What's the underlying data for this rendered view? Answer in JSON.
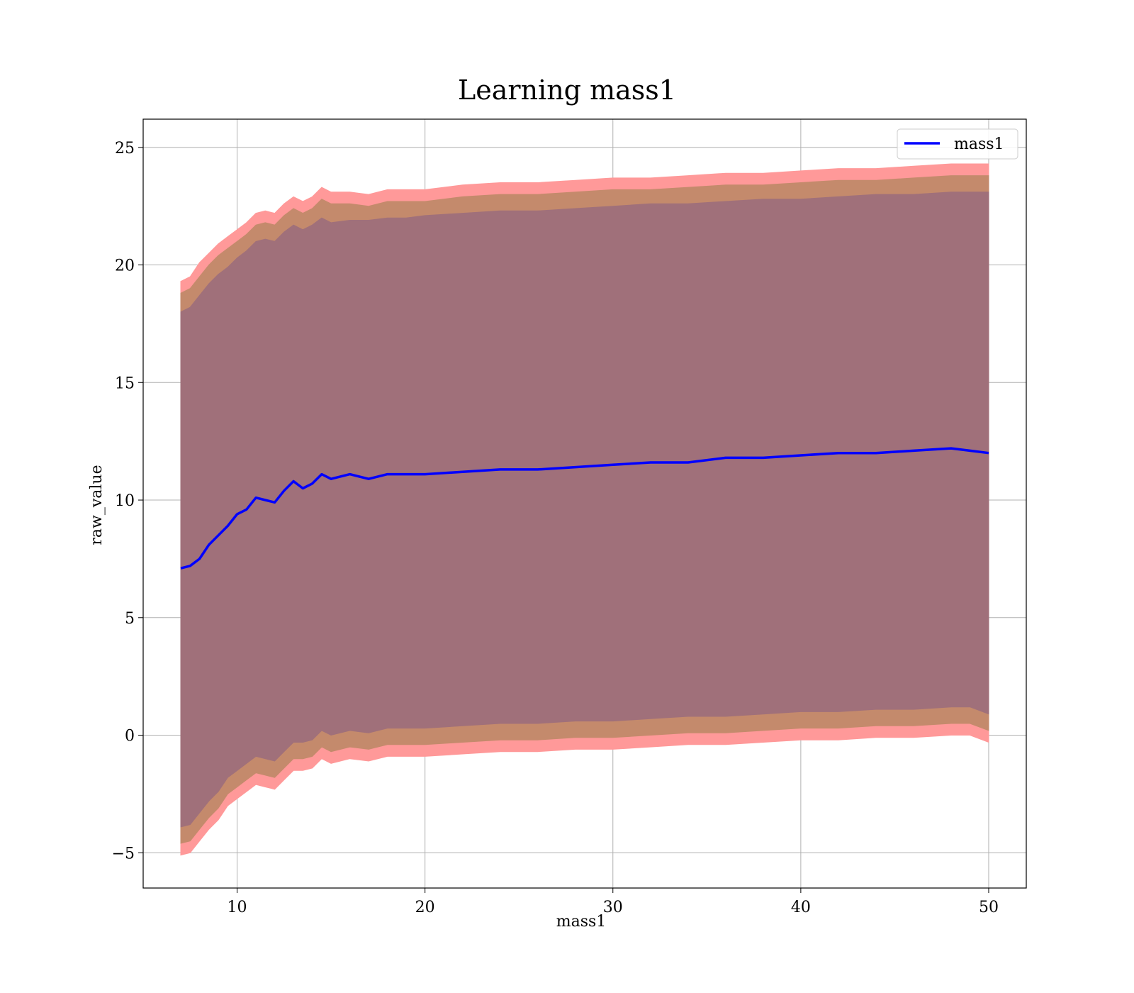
{
  "chart_data": {
    "type": "line",
    "title": "Learning mass1",
    "xlabel": "mass1",
    "ylabel": "raw_value",
    "xlim": [
      5,
      52
    ],
    "ylim": [
      -6.5,
      26.2
    ],
    "xticks": [
      10,
      20,
      30,
      40,
      50
    ],
    "yticks": [
      -5,
      0,
      5,
      10,
      15,
      20,
      25
    ],
    "ytick_labels": [
      "−5",
      "0",
      "5",
      "10",
      "15",
      "20",
      "25"
    ],
    "grid": true,
    "legend_position": "top-right",
    "colors": {
      "line": "#0000ff",
      "band_outer": "#ff9999",
      "band_middle": "#c48a6c",
      "band_inner": "#a0707a"
    },
    "series": [
      {
        "name": "mass1",
        "x": [
          7,
          7.5,
          8,
          8.5,
          9,
          9.5,
          10,
          10.5,
          11,
          11.5,
          12,
          12.5,
          13,
          13.5,
          14,
          14.5,
          15,
          16,
          17,
          18,
          19,
          20,
          22,
          24,
          26,
          28,
          30,
          32,
          34,
          36,
          38,
          40,
          42,
          44,
          46,
          48,
          49,
          50
        ],
        "y": [
          7.1,
          7.2,
          7.5,
          8.1,
          8.5,
          8.9,
          9.4,
          9.6,
          10.1,
          10.0,
          9.9,
          10.4,
          10.8,
          10.5,
          10.7,
          11.1,
          10.9,
          11.1,
          10.9,
          11.1,
          11.1,
          11.1,
          11.2,
          11.3,
          11.3,
          11.4,
          11.5,
          11.6,
          11.6,
          11.8,
          11.8,
          11.9,
          12.0,
          12.0,
          12.1,
          12.2,
          12.1,
          12.0
        ]
      }
    ],
    "bands": [
      {
        "x": [
          7,
          7.5,
          8,
          8.5,
          9,
          9.5,
          10,
          10.5,
          11,
          11.5,
          12,
          12.5,
          13,
          13.5,
          14,
          14.5,
          15,
          16,
          17,
          18,
          19,
          20,
          22,
          24,
          26,
          28,
          30,
          32,
          34,
          36,
          38,
          40,
          42,
          44,
          46,
          48,
          49,
          50
        ],
        "upper": [
          19.3,
          19.5,
          20.1,
          20.5,
          20.9,
          21.2,
          21.5,
          21.8,
          22.2,
          22.3,
          22.2,
          22.6,
          22.9,
          22.7,
          22.9,
          23.3,
          23.1,
          23.1,
          23.0,
          23.2,
          23.2,
          23.2,
          23.4,
          23.5,
          23.5,
          23.6,
          23.7,
          23.7,
          23.8,
          23.9,
          23.9,
          24.0,
          24.1,
          24.1,
          24.2,
          24.3,
          24.3,
          24.3
        ],
        "lower": [
          -5.1,
          -5.0,
          -4.5,
          -4.0,
          -3.6,
          -3.0,
          -2.7,
          -2.4,
          -2.1,
          -2.2,
          -2.3,
          -1.9,
          -1.5,
          -1.5,
          -1.4,
          -1.0,
          -1.2,
          -1.0,
          -1.1,
          -0.9,
          -0.9,
          -0.9,
          -0.8,
          -0.7,
          -0.7,
          -0.6,
          -0.6,
          -0.5,
          -0.4,
          -0.4,
          -0.3,
          -0.2,
          -0.2,
          -0.1,
          -0.1,
          0.0,
          0.0,
          -0.3
        ]
      },
      {
        "x": [
          7,
          7.5,
          8,
          8.5,
          9,
          9.5,
          10,
          10.5,
          11,
          11.5,
          12,
          12.5,
          13,
          13.5,
          14,
          14.5,
          15,
          16,
          17,
          18,
          19,
          20,
          22,
          24,
          26,
          28,
          30,
          32,
          34,
          36,
          38,
          40,
          42,
          44,
          46,
          48,
          49,
          50
        ],
        "upper": [
          18.8,
          19.0,
          19.5,
          20.0,
          20.4,
          20.7,
          21.0,
          21.3,
          21.7,
          21.8,
          21.7,
          22.1,
          22.4,
          22.2,
          22.4,
          22.8,
          22.6,
          22.6,
          22.5,
          22.7,
          22.7,
          22.7,
          22.9,
          23.0,
          23.0,
          23.1,
          23.2,
          23.2,
          23.3,
          23.4,
          23.4,
          23.5,
          23.6,
          23.6,
          23.7,
          23.8,
          23.8,
          23.8
        ],
        "lower": [
          -4.6,
          -4.5,
          -4.0,
          -3.5,
          -3.1,
          -2.5,
          -2.2,
          -1.9,
          -1.6,
          -1.7,
          -1.8,
          -1.4,
          -1.0,
          -1.0,
          -0.9,
          -0.5,
          -0.7,
          -0.5,
          -0.6,
          -0.4,
          -0.4,
          -0.4,
          -0.3,
          -0.2,
          -0.2,
          -0.1,
          -0.1,
          0.0,
          0.1,
          0.1,
          0.2,
          0.3,
          0.3,
          0.4,
          0.4,
          0.5,
          0.5,
          0.2
        ]
      },
      {
        "x": [
          7,
          7.5,
          8,
          8.5,
          9,
          9.5,
          10,
          10.5,
          11,
          11.5,
          12,
          12.5,
          13,
          13.5,
          14,
          14.5,
          15,
          16,
          17,
          18,
          19,
          20,
          22,
          24,
          26,
          28,
          30,
          32,
          34,
          36,
          38,
          40,
          42,
          44,
          46,
          48,
          49,
          50
        ],
        "upper": [
          18.0,
          18.2,
          18.7,
          19.2,
          19.6,
          19.9,
          20.3,
          20.6,
          21.0,
          21.1,
          21.0,
          21.4,
          21.7,
          21.5,
          21.7,
          22.0,
          21.8,
          21.9,
          21.9,
          22.0,
          22.0,
          22.1,
          22.2,
          22.3,
          22.3,
          22.4,
          22.5,
          22.6,
          22.6,
          22.7,
          22.8,
          22.8,
          22.9,
          23.0,
          23.0,
          23.1,
          23.1,
          23.1
        ],
        "lower": [
          -3.9,
          -3.8,
          -3.3,
          -2.8,
          -2.4,
          -1.8,
          -1.5,
          -1.2,
          -0.9,
          -1.0,
          -1.1,
          -0.7,
          -0.3,
          -0.3,
          -0.2,
          0.2,
          0.0,
          0.2,
          0.1,
          0.3,
          0.3,
          0.3,
          0.4,
          0.5,
          0.5,
          0.6,
          0.6,
          0.7,
          0.8,
          0.8,
          0.9,
          1.0,
          1.0,
          1.1,
          1.1,
          1.2,
          1.2,
          0.9
        ]
      }
    ],
    "legend": [
      {
        "label": "mass1",
        "color": "#0000ff"
      }
    ]
  }
}
